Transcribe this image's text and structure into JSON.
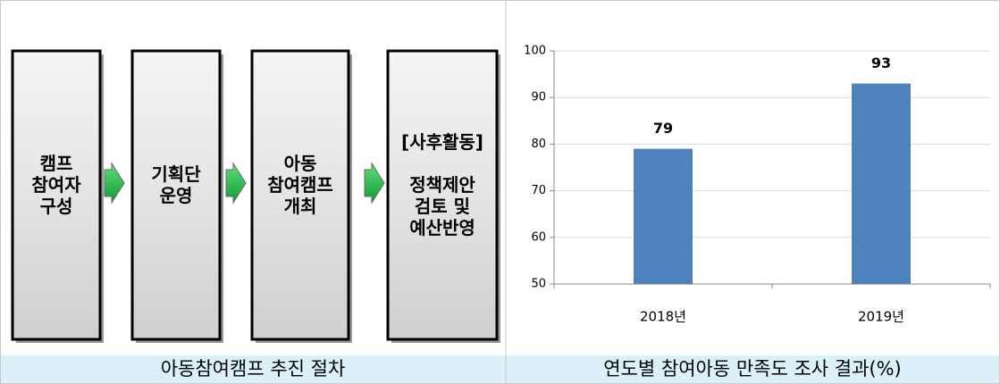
{
  "diagram": {
    "steps": [
      {
        "lines": [
          "캠프",
          "참여자",
          "구성"
        ]
      },
      {
        "lines": [
          "기획단",
          "운영"
        ]
      },
      {
        "lines": [
          "아동",
          "참여캠프",
          "개최"
        ]
      },
      {
        "lines": [
          "[사후활동]",
          "",
          "정책제안",
          "검토 및",
          "예산반영"
        ]
      }
    ],
    "caption": "아동참여캠프 추진 절차"
  },
  "chart_data": {
    "type": "bar",
    "caption": "연도별 참여아동 만족도 조사 결과(%)",
    "categories": [
      "2018년",
      "2019년"
    ],
    "values": [
      79,
      93
    ],
    "color": "#4f81bd",
    "ylim": [
      50,
      100
    ],
    "yticks": [
      50,
      60,
      70,
      80,
      90,
      100
    ],
    "grid": true
  }
}
